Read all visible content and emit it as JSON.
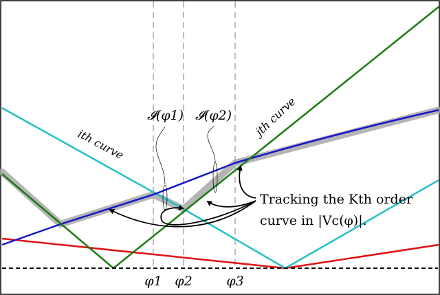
{
  "chart_data": {
    "type": "line",
    "title": "",
    "xlabel": "",
    "ylabel": "",
    "curve_labels": {
      "i": "ith curve",
      "j": "jth curve"
    },
    "phi_ticks": [
      "φ1",
      "φ2",
      "φ3"
    ],
    "interval_labels": [
      "𝓘(φ1)",
      "𝓘(φ2)"
    ],
    "annotation": {
      "line1": "Tracking the Kth order",
      "line2": "curve in |Vc(φ)|."
    },
    "colors": {
      "cyan": "#22c1c6",
      "green": "#1a7a12",
      "blue": "#1616c8",
      "red": "#e01212",
      "highlight": "#a8a8a8",
      "dashed": "#bdbdbd"
    }
  }
}
